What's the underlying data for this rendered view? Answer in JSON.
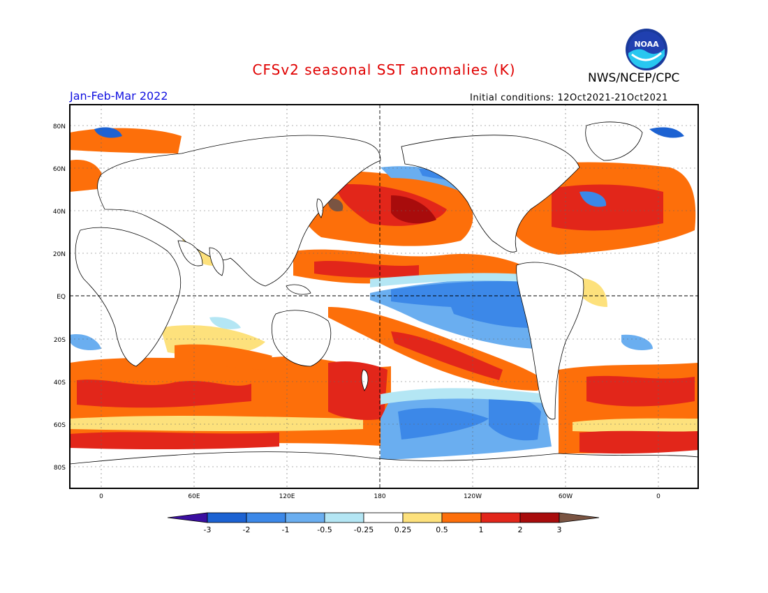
{
  "title": "CFSv2 seasonal SST anomalies (K)",
  "agency": "NWS/NCEP/CPC",
  "logo_text": "NOAA",
  "period": "Jan-Feb-Mar 2022",
  "initial_conditions": "Initial conditions: 12Oct2021-21Oct2021",
  "lat_labels": [
    "80N",
    "60N",
    "40N",
    "20N",
    "EQ",
    "20S",
    "40S",
    "60S",
    "80S"
  ],
  "lon_labels": [
    "0",
    "60E",
    "120E",
    "180",
    "120W",
    "60W",
    "0"
  ],
  "colorbar": {
    "labels": [
      "-3",
      "-2",
      "-1",
      "-0.5",
      "-0.25",
      "0.25",
      "0.5",
      "1",
      "2",
      "3"
    ],
    "colors": [
      "#3b0fa0",
      "#1c62d2",
      "#3c88e8",
      "#6aaef0",
      "#b4e6f4",
      "#ffffff",
      "#fde17c",
      "#fd6f0a",
      "#e2261a",
      "#a80c0c",
      "#7a5442"
    ]
  },
  "colors": {
    "land": "#ffffff",
    "warm_strong": "#e2261a",
    "warm": "#fd6f0a",
    "warm_weak": "#fde17c",
    "cool_weak": "#b4e6f4",
    "cool": "#3c88e8",
    "cool_strong": "#1c62d2"
  }
}
